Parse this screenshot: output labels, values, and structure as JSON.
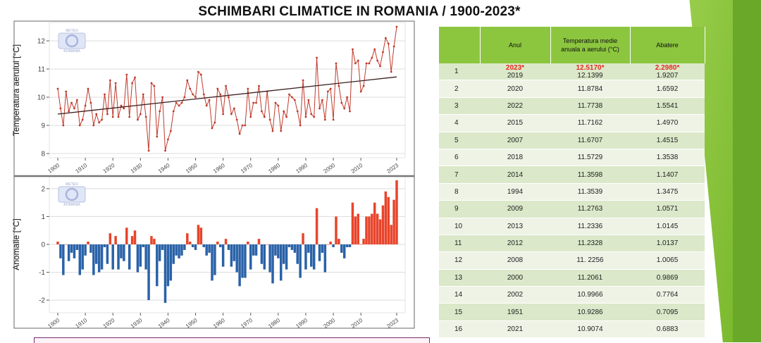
{
  "title": "SCHIMBARI CLIMATICE IN ROMANIA / 1900-2023*",
  "logo": {
    "top": "METEO",
    "bottom": "ROMANIA"
  },
  "colors": {
    "line": "#c0392b",
    "trend": "#3b1d1d",
    "positive": "#e8442a",
    "negative": "#2a62a8",
    "header": "#8cc63f"
  },
  "table": {
    "headers": {
      "rank": "",
      "year": "Anul",
      "temp": "Temperatura medie anuala a aerului (°C)",
      "dev": "Abatere"
    },
    "rows": [
      {
        "rank": "1",
        "year": "2023*",
        "year2": "2019",
        "temp": "12.5170*",
        "temp2": "12.1399",
        "dev": "2.2980*",
        "dev2": "1.9207"
      },
      {
        "rank": "2",
        "year": "2020",
        "temp": "11.8784",
        "dev": "1.6592"
      },
      {
        "rank": "3",
        "year": "2022",
        "temp": "11.7738",
        "dev": "1.5541"
      },
      {
        "rank": "4",
        "year": "2015",
        "temp": "11.7162",
        "dev": "1.4970"
      },
      {
        "rank": "5",
        "year": "2007",
        "temp": "11.6707",
        "dev": "1.4515"
      },
      {
        "rank": "6",
        "year": "2018",
        "temp": "11.5729",
        "dev": "1.3538"
      },
      {
        "rank": "7",
        "year": "2014",
        "temp": "11.3598",
        "dev": "1.1407"
      },
      {
        "rank": "8",
        "year": "1994",
        "temp": "11.3539",
        "dev": "1.3475"
      },
      {
        "rank": "9",
        "year": "2009",
        "temp": "11.2763",
        "dev": "1.0571"
      },
      {
        "rank": "10",
        "year": "2013",
        "temp": "11.2336",
        "dev": "1.0145"
      },
      {
        "rank": "11",
        "year": "2012",
        "temp": "11.2328",
        "dev": "1.0137"
      },
      {
        "rank": "12",
        "year": "2008",
        "temp": "11. 2256",
        "dev": "1.0065"
      },
      {
        "rank": "13",
        "year": "2000",
        "temp": "11.2061",
        "dev": "0.9869"
      },
      {
        "rank": "14",
        "year": "2002",
        "temp": "10.9966",
        "dev": "0.7764"
      },
      {
        "rank": "15",
        "year": "1951",
        "temp": "10.9286",
        "dev": "0.7095"
      },
      {
        "rank": "16",
        "year": "2021",
        "temp": "10.9074",
        "dev": "0.6883"
      }
    ]
  },
  "chart_data": [
    {
      "type": "line",
      "ylabel": "Temperatura aerului [°C]",
      "xlim": [
        1900,
        2023
      ],
      "ylim": [
        8,
        12.5
      ],
      "yticks": [
        8,
        9,
        10,
        11,
        12
      ],
      "xticks": [
        "1900",
        "1910",
        "1920",
        "1930",
        "1940",
        "1950",
        "1960",
        "1970",
        "1980",
        "1990",
        "2000",
        "2010",
        "2023"
      ],
      "grid": true,
      "start_year": 1900,
      "values": [
        10.3,
        9.6,
        9.0,
        10.2,
        9.5,
        9.8,
        9.6,
        9.9,
        9.0,
        9.2,
        9.7,
        10.3,
        9.8,
        9.0,
        9.4,
        9.1,
        9.2,
        10.1,
        9.4,
        10.6,
        9.3,
        10.5,
        9.3,
        9.7,
        9.6,
        10.8,
        9.3,
        10.5,
        10.7,
        9.2,
        9.4,
        10.1,
        9.3,
        8.1,
        10.5,
        10.4,
        8.6,
        9.5,
        10.0,
        8.1,
        8.5,
        8.8,
        9.5,
        9.8,
        9.7,
        9.8,
        10.0,
        10.6,
        10.3,
        10.1,
        10.0,
        10.9,
        10.8,
        10.1,
        9.7,
        9.9,
        8.9,
        9.1,
        10.3,
        10.1,
        9.4,
        10.4,
        10.0,
        9.4,
        9.6,
        9.2,
        8.7,
        9.0,
        9.0,
        10.3,
        9.3,
        9.8,
        9.8,
        10.4,
        9.5,
        9.3,
        10.2,
        9.2,
        8.8,
        9.8,
        9.7,
        8.8,
        9.5,
        9.3,
        10.1,
        10.0,
        9.9,
        9.5,
        9.0,
        10.6,
        9.3,
        9.9,
        9.4,
        9.3,
        11.4,
        9.6,
        9.9,
        9.2,
        10.2,
        10.3,
        9.2,
        11.2,
        10.4,
        9.8,
        9.6,
        10.0,
        9.5,
        11.7,
        11.2,
        11.3,
        10.2,
        10.4,
        11.2,
        11.2,
        11.4,
        11.7,
        11.3,
        11.1,
        11.6,
        12.1,
        11.9,
        10.9,
        11.8,
        12.5
      ],
      "trend": [
        9.4,
        10.72
      ]
    },
    {
      "type": "bar",
      "ylabel": "Anomalie [°C]",
      "xlim": [
        1900,
        2023
      ],
      "ylim": [
        -2.3,
        2.3
      ],
      "yticks": [
        -2,
        -1,
        0,
        1,
        2
      ],
      "xticks": [
        "1900",
        "1910",
        "1920",
        "1930",
        "1940",
        "1950",
        "1960",
        "1970",
        "1980",
        "1990",
        "2000",
        "2010",
        "2023"
      ],
      "grid": true,
      "start_year": 1900,
      "values": [
        0.1,
        -0.5,
        -1.1,
        0.0,
        -0.6,
        -0.3,
        -0.5,
        -0.2,
        -1.1,
        -0.9,
        -0.4,
        0.1,
        -0.3,
        -1.1,
        -0.7,
        -1.0,
        -0.9,
        -0.1,
        -0.7,
        0.4,
        -0.9,
        0.3,
        -0.9,
        -0.5,
        -0.6,
        0.6,
        -0.9,
        0.3,
        0.5,
        -1.0,
        -0.8,
        -0.1,
        -0.9,
        -2.0,
        0.3,
        0.2,
        -1.5,
        -0.6,
        -0.2,
        -2.1,
        -1.5,
        -1.3,
        -0.7,
        -0.4,
        -0.5,
        -0.4,
        -0.2,
        0.4,
        0.1,
        -0.1,
        -0.2,
        0.7,
        0.6,
        -0.1,
        -0.4,
        -0.3,
        -1.3,
        -1.1,
        0.1,
        -0.1,
        -0.8,
        0.2,
        -0.2,
        -0.8,
        -0.6,
        -1.0,
        -1.5,
        -1.2,
        -1.2,
        0.1,
        -0.9,
        -0.4,
        -0.4,
        0.2,
        -0.7,
        -0.9,
        0.0,
        -1.0,
        -1.4,
        -0.4,
        -0.5,
        -1.3,
        -0.7,
        -0.9,
        -0.1,
        -0.2,
        -0.3,
        -0.7,
        -1.2,
        0.4,
        -0.9,
        -0.3,
        -0.8,
        -0.9,
        1.3,
        -0.6,
        -0.3,
        -1.0,
        0.0,
        0.1,
        -0.1,
        1.0,
        0.2,
        -0.3,
        -0.5,
        -0.1,
        -0.1,
        1.5,
        1.0,
        1.1,
        0.0,
        0.2,
        1.0,
        1.0,
        1.1,
        1.5,
        1.1,
        0.9,
        1.4,
        1.9,
        1.7,
        0.7,
        1.6,
        2.3
      ]
    }
  ]
}
